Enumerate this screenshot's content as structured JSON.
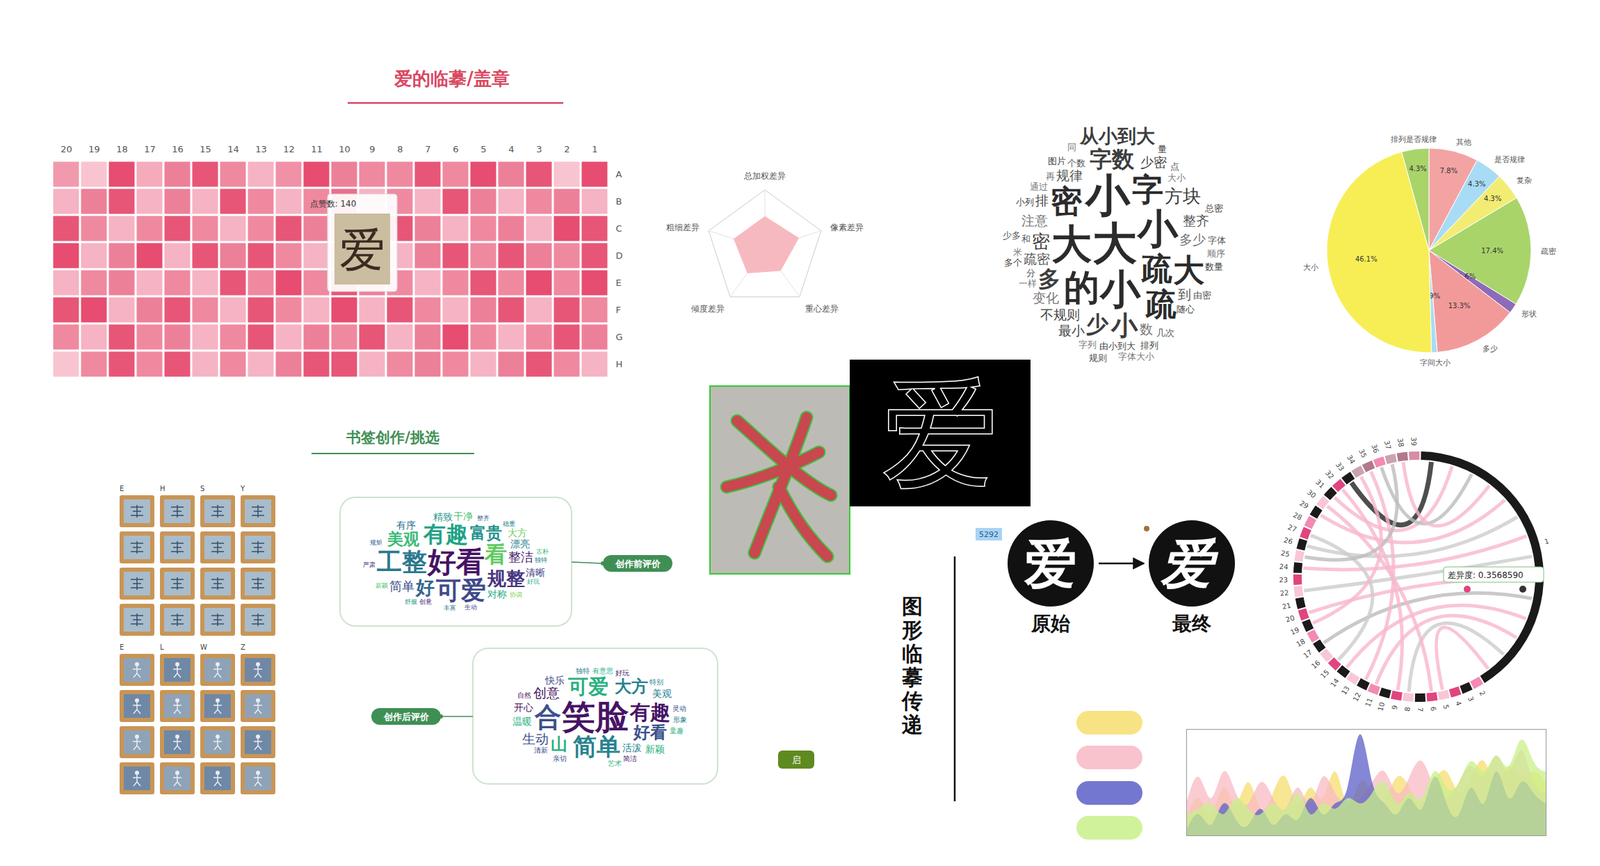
{
  "chart_data": [
    {
      "type": "heatmap",
      "title": "爱的临摹/盖章",
      "columns": [
        20,
        19,
        18,
        17,
        16,
        15,
        14,
        13,
        12,
        11,
        10,
        9,
        8,
        7,
        6,
        5,
        4,
        3,
        2,
        1
      ],
      "rows": [
        "A",
        "B",
        "C",
        "D",
        "E",
        "F",
        "G",
        "H"
      ],
      "values": [
        [
          90,
          40,
          180,
          70,
          120,
          170,
          110,
          60,
          100,
          180,
          120,
          110,
          110,
          170,
          110,
          180,
          120,
          170,
          40,
          180
        ],
        [
          60,
          120,
          170,
          60,
          120,
          60,
          170,
          110,
          60,
          110,
          140,
          60,
          110,
          60,
          170,
          120,
          60,
          110,
          120,
          60
        ],
        [
          170,
          110,
          60,
          110,
          170,
          110,
          60,
          110,
          170,
          120,
          140,
          110,
          170,
          120,
          60,
          110,
          120,
          60,
          180,
          170
        ],
        [
          180,
          60,
          120,
          180,
          60,
          170,
          120,
          170,
          110,
          60,
          120,
          110,
          60,
          120,
          170,
          110,
          170,
          120,
          110,
          170
        ],
        [
          60,
          110,
          120,
          60,
          110,
          60,
          170,
          110,
          180,
          110,
          170,
          120,
          110,
          60,
          110,
          170,
          110,
          180,
          110,
          180
        ],
        [
          170,
          180,
          60,
          120,
          170,
          110,
          60,
          170,
          110,
          60,
          180,
          60,
          170,
          110,
          60,
          120,
          170,
          60,
          170,
          110
        ],
        [
          110,
          60,
          170,
          110,
          120,
          60,
          110,
          170,
          60,
          120,
          110,
          170,
          60,
          120,
          180,
          110,
          60,
          110,
          170,
          120
        ],
        [
          40,
          110,
          170,
          110,
          170,
          60,
          110,
          60,
          120,
          170,
          170,
          60,
          110,
          120,
          110,
          60,
          120,
          170,
          110,
          60
        ]
      ],
      "color_domain": [
        0,
        200
      ],
      "color_range": [
        "#fde6ec",
        "#e33c62"
      ],
      "tooltip": {
        "label": "点赞数: 140",
        "column": 10,
        "row": "C",
        "glyph": "爱"
      }
    },
    {
      "type": "radar",
      "categories": [
        "总加权差异",
        "像素差异",
        "重心差异",
        "倾度差异",
        "粗细差异"
      ],
      "values": [
        0.55,
        0.6,
        0.45,
        0.5,
        0.55
      ],
      "rlim": [
        0,
        1
      ],
      "color": "#f7b9c0"
    },
    {
      "type": "wordcloud",
      "shape": "diamond",
      "words": [
        {
          "text": "大",
          "weight": 10
        },
        {
          "text": "小",
          "weight": 10
        },
        {
          "text": "小",
          "weight": 9
        },
        {
          "text": "大",
          "weight": 9
        },
        {
          "text": "小",
          "weight": 9
        },
        {
          "text": "的",
          "weight": 8
        },
        {
          "text": "疏",
          "weight": 7
        },
        {
          "text": "字",
          "weight": 7
        },
        {
          "text": "密",
          "weight": 7
        },
        {
          "text": "疏",
          "weight": 7
        },
        {
          "text": "大",
          "weight": 7
        },
        {
          "text": "小",
          "weight": 6
        },
        {
          "text": "字数",
          "weight": 5
        },
        {
          "text": "多",
          "weight": 5
        },
        {
          "text": "少",
          "weight": 5
        },
        {
          "text": "从小到大",
          "weight": 5
        },
        {
          "text": "密",
          "weight": 4
        },
        {
          "text": "方块",
          "weight": 4
        },
        {
          "text": "规律",
          "weight": 3
        },
        {
          "text": "多少",
          "weight": 3
        },
        {
          "text": "不规则",
          "weight": 3
        },
        {
          "text": "疏密",
          "weight": 3
        },
        {
          "text": "注意",
          "weight": 3
        },
        {
          "text": "少密",
          "weight": 3
        },
        {
          "text": "整齐",
          "weight": 3
        },
        {
          "text": "变化",
          "weight": 3
        },
        {
          "text": "排",
          "weight": 3
        },
        {
          "text": "到",
          "weight": 3
        },
        {
          "text": "数",
          "weight": 3
        },
        {
          "text": "最小",
          "weight": 3
        },
        {
          "text": "个数",
          "weight": 2
        },
        {
          "text": "大小",
          "weight": 2
        },
        {
          "text": "由小到大",
          "weight": 2
        },
        {
          "text": "分",
          "weight": 2
        },
        {
          "text": "通过",
          "weight": 2
        },
        {
          "text": "随心",
          "weight": 2
        },
        {
          "text": "和",
          "weight": 2
        },
        {
          "text": "一样",
          "weight": 2
        },
        {
          "text": "图片",
          "weight": 2
        },
        {
          "text": "几次",
          "weight": 2
        },
        {
          "text": "字列",
          "weight": 2
        },
        {
          "text": "小列",
          "weight": 2
        },
        {
          "text": "由密",
          "weight": 2
        },
        {
          "text": "再",
          "weight": 2
        },
        {
          "text": "排列",
          "weight": 2
        },
        {
          "text": "字体",
          "weight": 2
        },
        {
          "text": "顺序",
          "weight": 2
        },
        {
          "text": "数量",
          "weight": 2
        },
        {
          "text": "点",
          "weight": 2
        },
        {
          "text": "米",
          "weight": 2
        },
        {
          "text": "多个",
          "weight": 2
        },
        {
          "text": "少多",
          "weight": 2
        },
        {
          "text": "字体大小",
          "weight": 2
        },
        {
          "text": "总密",
          "weight": 2
        },
        {
          "text": "规则",
          "weight": 2
        },
        {
          "text": "同",
          "weight": 2
        },
        {
          "text": "量",
          "weight": 2
        }
      ]
    },
    {
      "type": "pie",
      "categories": [
        "其他",
        "是否规律",
        "复杂",
        "疏密",
        "形状",
        "多少",
        "字间大小",
        "大小",
        "排列是否规律"
      ],
      "values": [
        7.8,
        4.3,
        4.3,
        17.4,
        1.6,
        13.3,
        0.9,
        46.1,
        4.3
      ],
      "value_labels": [
        "7.8%",
        "4.3%",
        "4.3%",
        "17.4%",
        "1.6%",
        "13.3%",
        "0.9%",
        "46.1%",
        "4.3%"
      ],
      "colors": [
        "#f4a3a3",
        "#a8dcf5",
        "#f3ec73",
        "#a9d46a",
        "#8e6bb8",
        "#f29a9a",
        "#a8dcf5",
        "#f7ee55",
        "#a9d46a"
      ],
      "data_labels": true
    },
    {
      "type": "wordcloud",
      "shape": "rectangle",
      "title": "创作前评价",
      "words": [
        {
          "text": "好看",
          "weight": 9
        },
        {
          "text": "可爱",
          "weight": 8
        },
        {
          "text": "工整",
          "weight": 8
        },
        {
          "text": "有趣",
          "weight": 7
        },
        {
          "text": "看",
          "weight": 7
        },
        {
          "text": "规整",
          "weight": 6
        },
        {
          "text": "好",
          "weight": 6
        },
        {
          "text": "富贵",
          "weight": 5
        },
        {
          "text": "美观",
          "weight": 5
        },
        {
          "text": "整洁",
          "weight": 4
        },
        {
          "text": "简单",
          "weight": 4
        },
        {
          "text": "漂亮",
          "weight": 3
        },
        {
          "text": "对称",
          "weight": 3
        },
        {
          "text": "大方",
          "weight": 3
        },
        {
          "text": "清晰",
          "weight": 3
        },
        {
          "text": "有序",
          "weight": 3
        },
        {
          "text": "精致",
          "weight": 3
        },
        {
          "text": "干净",
          "weight": 3
        },
        {
          "text": "创意",
          "weight": 2
        },
        {
          "text": "整齐",
          "weight": 2
        },
        {
          "text": "独特",
          "weight": 2
        },
        {
          "text": "好玩",
          "weight": 2
        },
        {
          "text": "协调",
          "weight": 2
        },
        {
          "text": "生动",
          "weight": 2
        },
        {
          "text": "丰富",
          "weight": 2
        },
        {
          "text": "舒服",
          "weight": 2
        },
        {
          "text": "新颖",
          "weight": 2
        },
        {
          "text": "严肃",
          "weight": 2
        },
        {
          "text": "规矩",
          "weight": 2
        },
        {
          "text": "稳重",
          "weight": 2
        },
        {
          "text": "古朴",
          "weight": 2
        }
      ]
    },
    {
      "type": "wordcloud",
      "shape": "rectangle",
      "title": "创作后评价",
      "words": [
        {
          "text": "笑脸",
          "weight": 10
        },
        {
          "text": "合",
          "weight": 8
        },
        {
          "text": "简单",
          "weight": 7
        },
        {
          "text": "可爱",
          "weight": 6
        },
        {
          "text": "有趣",
          "weight": 6
        },
        {
          "text": "好看",
          "weight": 5
        },
        {
          "text": "大方",
          "weight": 5
        },
        {
          "text": "山",
          "weight": 5
        },
        {
          "text": "创意",
          "weight": 4
        },
        {
          "text": "生动",
          "weight": 4
        },
        {
          "text": "活泼",
          "weight": 3
        },
        {
          "text": "温暖",
          "weight": 3
        },
        {
          "text": "开心",
          "weight": 3
        },
        {
          "text": "快乐",
          "weight": 3
        },
        {
          "text": "美观",
          "weight": 3
        },
        {
          "text": "新颖",
          "weight": 3
        },
        {
          "text": "自然",
          "weight": 2
        },
        {
          "text": "清新",
          "weight": 2
        },
        {
          "text": "独特",
          "weight": 2
        },
        {
          "text": "有意思",
          "weight": 2
        },
        {
          "text": "好玩",
          "weight": 2
        },
        {
          "text": "灵动",
          "weight": 2
        },
        {
          "text": "形象",
          "weight": 2
        },
        {
          "text": "童趣",
          "weight": 2
        },
        {
          "text": "简洁",
          "weight": 2
        },
        {
          "text": "亲切",
          "weight": 2
        },
        {
          "text": "特别",
          "weight": 2
        },
        {
          "text": "艺术",
          "weight": 2
        }
      ]
    },
    {
      "type": "chord",
      "nodes": [
        1,
        2,
        3,
        4,
        5,
        6,
        7,
        8,
        9,
        10,
        11,
        12,
        13,
        14,
        15,
        16,
        17,
        18,
        19,
        20,
        21,
        22,
        23,
        24,
        25,
        26,
        27,
        28,
        29,
        30,
        31,
        32,
        33,
        34,
        35,
        36,
        37,
        38,
        39
      ],
      "node_values": [
        30,
        1,
        1,
        1,
        1,
        1,
        1,
        1,
        1,
        1,
        1,
        1,
        1,
        1,
        1,
        1,
        1,
        1,
        1,
        1,
        1,
        1,
        1,
        1,
        1,
        1,
        1,
        1,
        1,
        1,
        1,
        1,
        1,
        1,
        1,
        1,
        1,
        1,
        1
      ],
      "node_colors": [
        "#1a1a1a",
        "#f28ab3",
        "#1a1a1a",
        "#e0457f",
        "#f9c6d6",
        "#e0457f",
        "#1a1a1a",
        "#f9c6d6",
        "#e0457f",
        "#1a1a1a",
        "#f28ab3",
        "#1a1a1a",
        "#f9c6d6",
        "#1a1a1a",
        "#e0457f",
        "#f9c6d6",
        "#1a1a1a",
        "#f28ab3",
        "#1a1a1a",
        "#e0457f",
        "#1a1a1a",
        "#f9c6d6",
        "#e0457f",
        "#1a1a1a",
        "#f9c6d6",
        "#1a1a1a",
        "#e0457f",
        "#f28ab3",
        "#1a1a1a",
        "#f9c6d6",
        "#1a1a1a",
        "#e0457f",
        "#1a1a1a",
        "#c9a3ae",
        "#b07a8a",
        "#f28ab3",
        "#c9a3ae",
        "#b07a8a",
        "#d98ca5"
      ],
      "links": [
        [
          1,
          33
        ],
        [
          1,
          31
        ],
        [
          1,
          36
        ],
        [
          1,
          38
        ],
        [
          1,
          29
        ],
        [
          1,
          26
        ],
        [
          1,
          24
        ],
        [
          1,
          22
        ],
        [
          1,
          20
        ],
        [
          1,
          17
        ],
        [
          1,
          14
        ],
        [
          1,
          11
        ],
        [
          1,
          8
        ],
        [
          1,
          5
        ],
        [
          35,
          12
        ],
        [
          30,
          6
        ],
        [
          27,
          15
        ],
        [
          34,
          19
        ],
        [
          37,
          25
        ],
        [
          32,
          9
        ]
      ],
      "link_colors": [
        "#222222",
        "#f7b6cc",
        "#bbbbbb",
        "#f7b6cc",
        "#f7b6cc",
        "#cccccc",
        "#f7b6cc",
        "#cccccc",
        "#f7b6cc",
        "#bbbbbb",
        "#f7b6cc",
        "#f7b6cc",
        "#cccccc",
        "#f7b6cc",
        "#f7b6cc",
        "#f7b6cc",
        "#cccccc",
        "#f7b6cc",
        "#bbbbbb",
        "#f7b6cc"
      ],
      "tooltip": "差异度: 0.3568590"
    },
    {
      "type": "area",
      "x": [
        0,
        1,
        2,
        3,
        4,
        5,
        6,
        7,
        8,
        9,
        10,
        11,
        12,
        13,
        14,
        15,
        16,
        17,
        18,
        19,
        20,
        21,
        22,
        23,
        24,
        25,
        26,
        27,
        28,
        29
      ],
      "xlim": [
        0,
        29
      ],
      "ylim": [
        0,
        1
      ],
      "tick_labels": false,
      "series": [
        {
          "color": "#f6de6e",
          "values": [
            0.15,
            0.35,
            0.2,
            0.45,
            0.3,
            0.5,
            0.25,
            0.4,
            0.55,
            0.3,
            0.45,
            0.35,
            0.6,
            0.3,
            0.5,
            0.4,
            0.35,
            0.55,
            0.45,
            0.3,
            0.5,
            0.6,
            0.4,
            0.55,
            0.7,
            0.5,
            0.65,
            0.55,
            0.6,
            0.5
          ]
        },
        {
          "color": "#f8b9c4",
          "values": [
            0.3,
            0.55,
            0.35,
            0.6,
            0.4,
            0.3,
            0.5,
            0.35,
            0.25,
            0.45,
            0.3,
            0.55,
            0.4,
            0.3,
            0.35,
            0.5,
            0.6,
            0.4,
            0.55,
            0.7,
            0.45,
            0.35,
            0.5,
            0.65,
            0.55,
            0.75,
            0.6,
            0.8,
            0.5,
            0.4
          ]
        },
        {
          "color": "#5b5fc7",
          "values": [
            0.05,
            0.2,
            0.1,
            0.3,
            0.15,
            0.1,
            0.25,
            0.1,
            0.2,
            0.15,
            0.35,
            0.2,
            0.3,
            0.45,
            0.95,
            0.5,
            0.3,
            0.2,
            0.35,
            0.25,
            0.55,
            0.3,
            0.2,
            0.45,
            0.3,
            0.6,
            0.35,
            0.5,
            0.4,
            0.3
          ]
        },
        {
          "color": "#c8f08a",
          "values": [
            0.2,
            0.25,
            0.3,
            0.2,
            0.35,
            0.25,
            0.2,
            0.3,
            0.25,
            0.4,
            0.2,
            0.3,
            0.25,
            0.35,
            0.3,
            0.4,
            0.5,
            0.3,
            0.4,
            0.35,
            0.6,
            0.45,
            0.5,
            0.7,
            0.6,
            0.75,
            0.65,
            0.9,
            0.7,
            0.6
          ]
        }
      ]
    }
  ],
  "bookmark": {
    "title": "书签创作/挑选",
    "headers": [
      [
        "E",
        "H",
        "S",
        "Y"
      ],
      [
        "E",
        "L",
        "W",
        "Z"
      ]
    ],
    "button": "启"
  },
  "transfer": {
    "title": "图形临摹传递",
    "tag": "5292",
    "edge_glyph": "爱",
    "from": {
      "label": "原始",
      "glyph": "爱"
    },
    "to": {
      "label": "最终",
      "glyph": "爱"
    }
  }
}
